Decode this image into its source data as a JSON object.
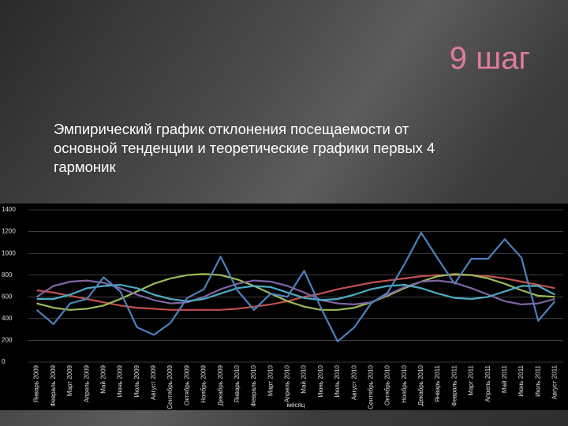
{
  "slide_title": "9 шаг",
  "subtitle_lines": [
    "Эмпирический график отклонения посещаемости от",
    "основной тенденции и теоретические графики первых 4",
    "гармоник"
  ],
  "chart_data": {
    "type": "line",
    "x_label": "месяц",
    "categories": [
      "Январь 2009",
      "Февраль 2009",
      "Март 2009",
      "Апрель 2009",
      "Май 2009",
      "Июнь 2009",
      "Июль 2009",
      "Август 2009",
      "Сентябрь 2009",
      "Октябрь 2009",
      "Ноябрь 2009",
      "Декабрь 2009",
      "Январь 2010",
      "Февраль 2010",
      "Март 2010",
      "Апрель 2010",
      "Май 2010",
      "Июнь 2010",
      "Июль 2010",
      "Август 2010",
      "Сентябрь 2010",
      "Октябрь 2010",
      "Ноябрь 2010",
      "Декабрь 2010",
      "Январь 2011",
      "Февраль 2011",
      "Март 2011",
      "Апрель 2011",
      "Май 2011",
      "Июнь 2011",
      "Июль 2011",
      "Август 2011"
    ],
    "series": [
      {
        "color": "#c0504d",
        "values": [
          660,
          640,
          610,
          580,
          550,
          520,
          500,
          490,
          480,
          480,
          480,
          480,
          490,
          510,
          530,
          560,
          600,
          630,
          670,
          700,
          730,
          750,
          770,
          790,
          800,
          800,
          800,
          790,
          770,
          740,
          710,
          680
        ]
      },
      {
        "color": "#9bbb59",
        "values": [
          540,
          500,
          480,
          490,
          520,
          580,
          650,
          720,
          770,
          800,
          810,
          800,
          760,
          700,
          630,
          560,
          510,
          480,
          480,
          500,
          550,
          610,
          680,
          740,
          790,
          810,
          800,
          770,
          720,
          660,
          610,
          600
        ]
      },
      {
        "color": "#8064a2",
        "values": [
          600,
          700,
          740,
          750,
          730,
          680,
          620,
          570,
          540,
          550,
          600,
          670,
          720,
          750,
          740,
          700,
          640,
          570,
          540,
          530,
          550,
          620,
          690,
          740,
          750,
          730,
          680,
          620,
          560,
          530,
          540,
          580
        ]
      },
      {
        "color": "#4bacc6",
        "values": [
          580,
          580,
          620,
          680,
          700,
          710,
          680,
          620,
          580,
          560,
          580,
          630,
          680,
          700,
          690,
          640,
          590,
          570,
          580,
          620,
          670,
          700,
          710,
          680,
          630,
          590,
          580,
          600,
          650,
          700,
          700,
          620
        ]
      },
      {
        "color": "#4f81bd",
        "values": [
          480,
          350,
          540,
          580,
          780,
          650,
          320,
          250,
          360,
          590,
          670,
          970,
          660,
          480,
          630,
          600,
          840,
          500,
          190,
          320,
          540,
          640,
          900,
          1190,
          950,
          720,
          950,
          950,
          1130,
          960,
          380,
          560
        ]
      }
    ],
    "ylim": [
      0,
      1400
    ],
    "yticks": [
      0,
      200,
      400,
      600,
      800,
      1000,
      1200,
      1400
    ],
    "grid": true
  }
}
